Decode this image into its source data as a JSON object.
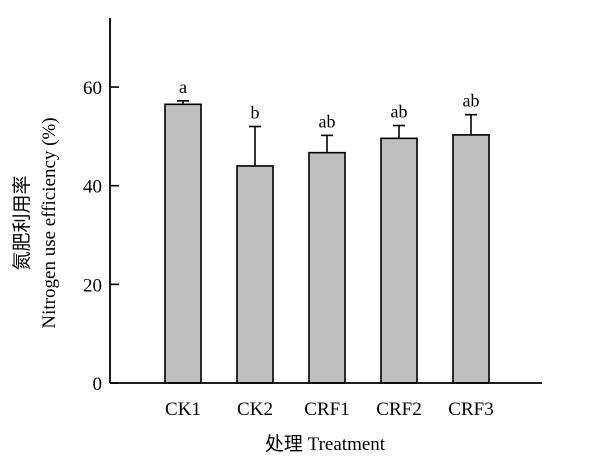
{
  "chart_data": {
    "type": "bar",
    "categories": [
      "CK1",
      "CK2",
      "CRF1",
      "CRF2",
      "CRF3"
    ],
    "values": [
      56.5,
      44.0,
      46.7,
      49.6,
      50.3
    ],
    "errors": [
      0.7,
      8.0,
      3.5,
      2.6,
      4.1
    ],
    "significance": [
      "a",
      "b",
      "ab",
      "ab",
      "ab"
    ],
    "title": "",
    "xlabel": "处理 Treatment",
    "ylabel_cn": "氮肥利用率",
    "ylabel_en": "Nitrogen use efficiency (%)",
    "ylim": [
      0,
      74
    ],
    "yticks": [
      0,
      20,
      40,
      60
    ],
    "grid": false,
    "legend": "none",
    "bar_color": "#bfbfbf",
    "bar_edge_color": "#000000"
  }
}
